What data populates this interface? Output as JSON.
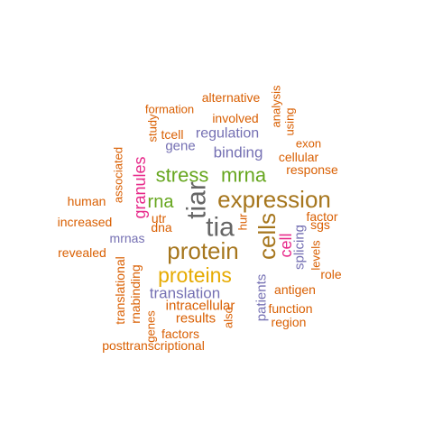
{
  "colors": {
    "orange": "#d95f02",
    "purple": "#7570b3",
    "green": "#66a61e",
    "magenta": "#e7298a",
    "gray": "#666666",
    "brown": "#a6761d",
    "gold": "#e6ab02"
  },
  "words": [
    {
      "text": "tiar",
      "color": "gray"
    },
    {
      "text": "tia",
      "color": "gray"
    },
    {
      "text": "expression",
      "color": "brown"
    },
    {
      "text": "protein",
      "color": "brown"
    },
    {
      "text": "cells",
      "color": "brown"
    },
    {
      "text": "proteins",
      "color": "gold"
    },
    {
      "text": "stress",
      "color": "green"
    },
    {
      "text": "mrna",
      "color": "green"
    },
    {
      "text": "rna",
      "color": "green"
    },
    {
      "text": "granules",
      "color": "magenta"
    },
    {
      "text": "cell",
      "color": "magenta"
    },
    {
      "text": "binding",
      "color": "purple"
    },
    {
      "text": "regulation",
      "color": "purple"
    },
    {
      "text": "translation",
      "color": "purple"
    },
    {
      "text": "splicing",
      "color": "purple"
    },
    {
      "text": "patients",
      "color": "purple"
    },
    {
      "text": "gene",
      "color": "purple"
    },
    {
      "text": "mrnas",
      "color": "purple"
    },
    {
      "text": "alternative",
      "color": "orange"
    },
    {
      "text": "formation",
      "color": "orange"
    },
    {
      "text": "involved",
      "color": "orange"
    },
    {
      "text": "analysis",
      "color": "orange"
    },
    {
      "text": "using",
      "color": "orange"
    },
    {
      "text": "study",
      "color": "orange"
    },
    {
      "text": "tcell",
      "color": "orange"
    },
    {
      "text": "exon",
      "color": "orange"
    },
    {
      "text": "cellular",
      "color": "orange"
    },
    {
      "text": "response",
      "color": "orange"
    },
    {
      "text": "associated",
      "color": "orange"
    },
    {
      "text": "human",
      "color": "orange"
    },
    {
      "text": "increased",
      "color": "orange"
    },
    {
      "text": "utr",
      "color": "orange"
    },
    {
      "text": "dna",
      "color": "orange"
    },
    {
      "text": "hur",
      "color": "orange"
    },
    {
      "text": "factor",
      "color": "orange"
    },
    {
      "text": "sgs",
      "color": "orange"
    },
    {
      "text": "revealed",
      "color": "orange"
    },
    {
      "text": "levels",
      "color": "orange"
    },
    {
      "text": "role",
      "color": "orange"
    },
    {
      "text": "antigen",
      "color": "orange"
    },
    {
      "text": "translational",
      "color": "orange"
    },
    {
      "text": "rnabinding",
      "color": "orange"
    },
    {
      "text": "intracellular",
      "color": "orange"
    },
    {
      "text": "function",
      "color": "orange"
    },
    {
      "text": "results",
      "color": "orange"
    },
    {
      "text": "region",
      "color": "orange"
    },
    {
      "text": "genes",
      "color": "orange"
    },
    {
      "text": "also",
      "color": "orange"
    },
    {
      "text": "factors",
      "color": "orange"
    },
    {
      "text": "posttranscriptional",
      "color": "orange"
    }
  ]
}
